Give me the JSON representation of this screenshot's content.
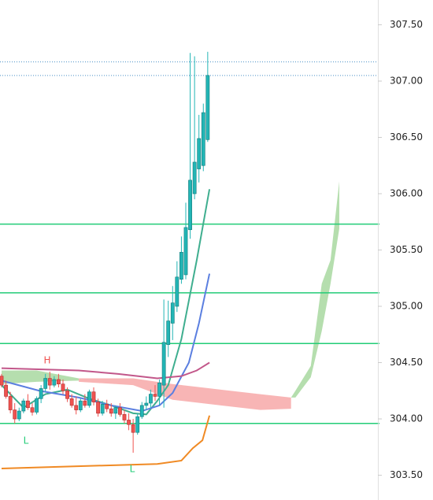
{
  "chart_data": {
    "type": "candlestick",
    "up_color": "#22b5b5",
    "down_color": "#ef5350",
    "xlim": [
      0,
      85.8
    ],
    "ylim": [
      303.28,
      307.72
    ],
    "yticks": [
      {
        "value": 303.5,
        "label": "303.50"
      },
      {
        "value": 304,
        "label": "304.00"
      },
      {
        "value": 304.5,
        "label": "304.50"
      },
      {
        "value": 305,
        "label": "305.00"
      },
      {
        "value": 305.5,
        "label": "305.50"
      },
      {
        "value": 306,
        "label": "306.00"
      },
      {
        "value": 306.5,
        "label": "306.50"
      },
      {
        "value": 307,
        "label": "307.00"
      },
      {
        "value": 307.5,
        "label": "307.50"
      }
    ],
    "candles": {
      "open": [
        304.38,
        304.3,
        304.2,
        304.08,
        304.0,
        304.07,
        304.16,
        304.1,
        304.06,
        304.18,
        304.27,
        304.36,
        304.3,
        304.35,
        304.31,
        304.25,
        304.18,
        304.12,
        304.08,
        304.16,
        304.12,
        304.24,
        304.15,
        304.05,
        304.13,
        304.09,
        304.05,
        304.1,
        304.04,
        303.99,
        303.95,
        303.88,
        304.02,
        304.12,
        304.14,
        304.22,
        304.2,
        304.3,
        304.66,
        304.85,
        305.0,
        305.24,
        305.28,
        305.68,
        306.0,
        306.22,
        306.25,
        306.48
      ],
      "high": [
        304.4,
        304.34,
        304.24,
        304.14,
        304.1,
        304.18,
        304.22,
        304.14,
        304.2,
        304.3,
        304.4,
        304.42,
        304.38,
        304.4,
        304.35,
        304.28,
        304.22,
        304.2,
        304.18,
        304.22,
        304.26,
        304.28,
        304.18,
        304.16,
        304.17,
        304.14,
        304.12,
        304.14,
        304.08,
        304.05,
        304.0,
        304.05,
        304.15,
        304.2,
        304.26,
        304.3,
        304.35,
        305.06,
        305.05,
        305.18,
        305.4,
        305.62,
        305.92,
        307.25,
        307.22,
        306.7,
        306.8,
        307.26
      ],
      "low": [
        304.28,
        304.18,
        304.05,
        303.96,
        303.98,
        304.05,
        304.08,
        304.03,
        304.04,
        304.14,
        304.24,
        304.26,
        304.28,
        304.28,
        304.22,
        304.15,
        304.1,
        304.04,
        304.06,
        304.1,
        304.1,
        304.12,
        304.02,
        304.03,
        304.06,
        304.02,
        304.0,
        304.02,
        303.96,
        303.9,
        303.7,
        303.86,
        304.0,
        304.08,
        304.1,
        304.16,
        304.12,
        304.1,
        304.55,
        304.7,
        304.95,
        305.2,
        305.24,
        305.6,
        305.95,
        306.1,
        306.2,
        306.46
      ],
      "close": [
        304.3,
        304.2,
        304.08,
        304.0,
        304.07,
        304.16,
        304.1,
        304.06,
        304.18,
        304.27,
        304.36,
        304.3,
        304.35,
        304.31,
        304.25,
        304.18,
        304.12,
        304.08,
        304.16,
        304.12,
        304.24,
        304.15,
        304.05,
        304.13,
        304.09,
        304.05,
        304.1,
        304.04,
        303.99,
        303.95,
        303.88,
        304.02,
        304.12,
        304.14,
        304.22,
        304.2,
        304.32,
        304.68,
        304.87,
        305.03,
        305.26,
        305.48,
        305.7,
        306.12,
        306.28,
        306.49,
        306.72,
        307.05
      ]
    },
    "clouds": [
      {
        "color": "#a8d8a0",
        "x": [
          0,
          8,
          17.6
        ],
        "upper": [
          304.43,
          304.43,
          304.36
        ],
        "lower": [
          304.31,
          304.33,
          304.34
        ]
      },
      {
        "color": "#f7a8a8",
        "x": [
          17.6,
          30,
          39,
          50,
          59,
          66
        ],
        "upper": [
          304.36,
          304.36,
          304.31,
          304.26,
          304.22,
          304.19
        ],
        "lower": [
          304.33,
          304.3,
          304.17,
          304.12,
          304.08,
          304.09
        ]
      },
      {
        "color": "#a8d8a0",
        "x": [
          66,
          67,
          70.5,
          73,
          75,
          77
        ],
        "upper": [
          304.19,
          304.25,
          304.47,
          305.2,
          305.41,
          306.11
        ],
        "lower": [
          304.19,
          304.19,
          304.37,
          304.78,
          305.2,
          305.69
        ]
      }
    ],
    "lines": [
      {
        "color": "#3fae8f",
        "x": [
          0,
          5,
          10,
          15,
          20,
          25,
          30,
          33,
          35.5,
          38,
          41,
          44.5,
          47.4
        ],
        "values": [
          304.3,
          304.1,
          304.22,
          304.26,
          304.18,
          304.12,
          304.05,
          304.04,
          304.16,
          304.3,
          304.71,
          305.41,
          306.04
        ]
      },
      {
        "color": "#5b7fe0",
        "x": [
          0,
          8.6,
          17.6,
          25,
          32,
          36,
          39,
          42.7,
          45,
          47.4
        ],
        "values": [
          304.34,
          304.25,
          304.19,
          304.12,
          304.07,
          304.12,
          304.23,
          304.5,
          304.85,
          305.29
        ]
      },
      {
        "color": "#c2578a",
        "x": [
          0,
          17.6,
          26.6,
          35.5,
          41,
          44.5,
          47.4
        ],
        "values": [
          304.45,
          304.43,
          304.4,
          304.36,
          304.38,
          304.43,
          304.5
        ]
      },
      {
        "color": "#f08a24",
        "x": [
          0,
          35.5,
          41,
          43.6,
          45.8,
          47.4
        ],
        "values": [
          303.56,
          303.6,
          303.63,
          303.74,
          303.81,
          304.03
        ]
      }
    ],
    "levels": [
      305.73,
      305.12,
      304.67,
      303.96
    ],
    "level_color": "#22cc77",
    "dotted_levels": [
      307.17,
      307.05
    ],
    "dotted_color": "#4a90c8",
    "annotations": [
      "H",
      "L",
      "L"
    ]
  }
}
